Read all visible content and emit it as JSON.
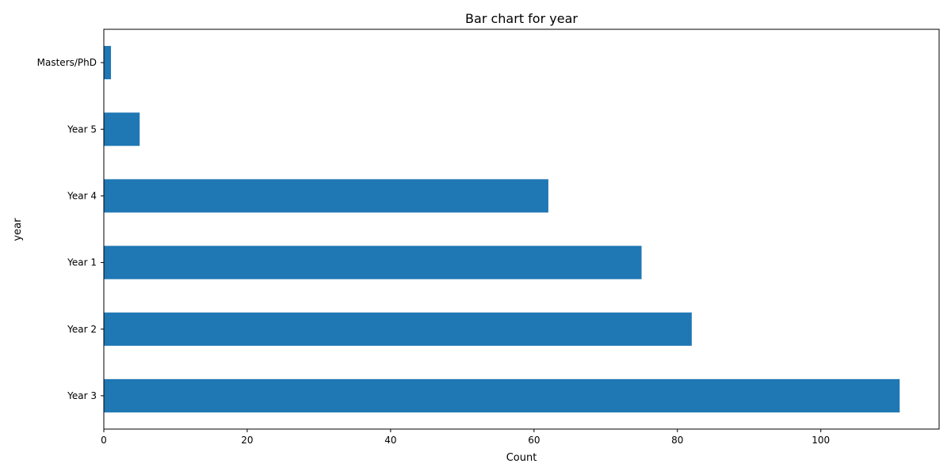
{
  "chart_data": {
    "type": "bar",
    "orientation": "horizontal",
    "title": "Bar chart for year",
    "xlabel": "Count",
    "ylabel": "year",
    "categories": [
      "Year 3",
      "Year 2",
      "Year 1",
      "Year 4",
      "Year 5",
      "Masters/PhD"
    ],
    "values": [
      111,
      82,
      75,
      62,
      5,
      1
    ],
    "xlim": [
      0,
      116.5
    ],
    "xticks": [
      0,
      20,
      40,
      60,
      80,
      100
    ],
    "grid": false,
    "colors": {
      "bar": "#1f77b4"
    }
  }
}
